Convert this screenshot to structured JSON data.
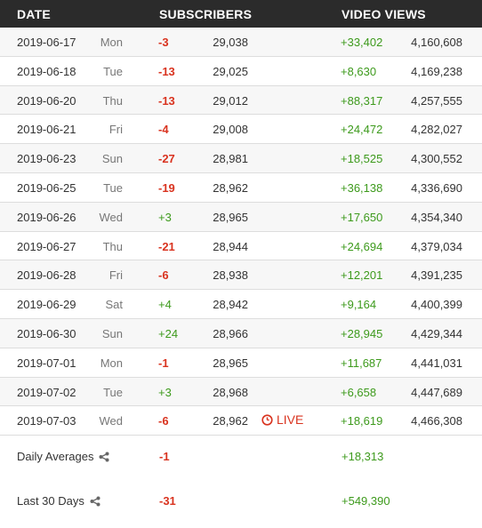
{
  "header": {
    "date": "DATE",
    "subscribers": "SUBSCRIBERS",
    "video_views": "VIDEO VIEWS"
  },
  "rows": [
    {
      "date": "2019-06-17",
      "day": "Mon",
      "sub_delta": "-3",
      "subs": "29,038",
      "view_delta": "+33,402",
      "views": "4,160,608"
    },
    {
      "date": "2019-06-18",
      "day": "Tue",
      "sub_delta": "-13",
      "subs": "29,025",
      "view_delta": "+8,630",
      "views": "4,169,238"
    },
    {
      "date": "2019-06-20",
      "day": "Thu",
      "sub_delta": "-13",
      "subs": "29,012",
      "view_delta": "+88,317",
      "views": "4,257,555"
    },
    {
      "date": "2019-06-21",
      "day": "Fri",
      "sub_delta": "-4",
      "subs": "29,008",
      "view_delta": "+24,472",
      "views": "4,282,027"
    },
    {
      "date": "2019-06-23",
      "day": "Sun",
      "sub_delta": "-27",
      "subs": "28,981",
      "view_delta": "+18,525",
      "views": "4,300,552"
    },
    {
      "date": "2019-06-25",
      "day": "Tue",
      "sub_delta": "-19",
      "subs": "28,962",
      "view_delta": "+36,138",
      "views": "4,336,690"
    },
    {
      "date": "2019-06-26",
      "day": "Wed",
      "sub_delta": "+3",
      "subs": "28,965",
      "view_delta": "+17,650",
      "views": "4,354,340"
    },
    {
      "date": "2019-06-27",
      "day": "Thu",
      "sub_delta": "-21",
      "subs": "28,944",
      "view_delta": "+24,694",
      "views": "4,379,034"
    },
    {
      "date": "2019-06-28",
      "day": "Fri",
      "sub_delta": "-6",
      "subs": "28,938",
      "view_delta": "+12,201",
      "views": "4,391,235"
    },
    {
      "date": "2019-06-29",
      "day": "Sat",
      "sub_delta": "+4",
      "subs": "28,942",
      "view_delta": "+9,164",
      "views": "4,400,399"
    },
    {
      "date": "2019-06-30",
      "day": "Sun",
      "sub_delta": "+24",
      "subs": "28,966",
      "view_delta": "+28,945",
      "views": "4,429,344"
    },
    {
      "date": "2019-07-01",
      "day": "Mon",
      "sub_delta": "-1",
      "subs": "28,965",
      "view_delta": "+11,687",
      "views": "4,441,031"
    },
    {
      "date": "2019-07-02",
      "day": "Tue",
      "sub_delta": "+3",
      "subs": "28,968",
      "view_delta": "+6,658",
      "views": "4,447,689"
    },
    {
      "date": "2019-07-03",
      "day": "Wed",
      "sub_delta": "-6",
      "subs": "28,962",
      "view_delta": "+18,619",
      "views": "4,466,308",
      "live": "LIVE"
    }
  ],
  "summary": {
    "daily_averages": {
      "label": "Daily Averages",
      "subs": "-1",
      "views": "+18,313"
    },
    "last_30_days": {
      "label": "Last 30 Days",
      "subs": "-31",
      "views": "+549,390"
    }
  },
  "icons": {
    "live": "clock-icon",
    "share": "share-icon"
  },
  "colors": {
    "header_bg": "#2b2b2b",
    "negative": "#d9331f",
    "positive": "#3d9a1c"
  }
}
